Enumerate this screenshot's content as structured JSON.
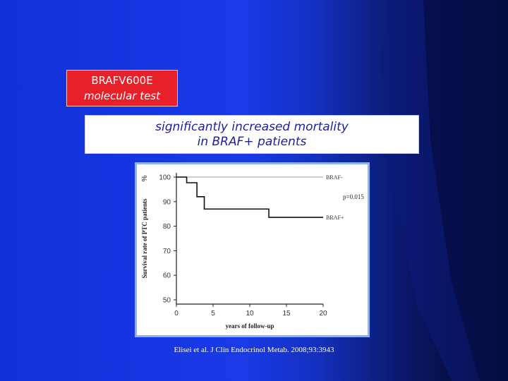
{
  "slide": {
    "tag_line1": "BRAFV600E",
    "tag_line2": "molecular test",
    "headline_line1": "significantly increased mortality",
    "headline_line2": "in BRAF+ patients",
    "citation": "Elisei et al. J Clin Endocrinol Metab. 2008;93:3943"
  },
  "chart_data": {
    "type": "line",
    "title": "",
    "xlabel": "years of follow-up",
    "ylabel": "Survival rate of PTC patients",
    "y_unit": "%",
    "xlim": [
      0,
      20
    ],
    "ylim": [
      50,
      100
    ],
    "x_ticks": [
      "0",
      "5",
      "10",
      "15",
      "20"
    ],
    "y_ticks": [
      "100",
      "90",
      "80",
      "70",
      "60",
      "50"
    ],
    "grid": false,
    "annotation": "p=0.015",
    "series": [
      {
        "name": "BRAF-",
        "step": true,
        "color": "#b0b0b0",
        "x": [
          0,
          20
        ],
        "y": [
          100,
          100
        ]
      },
      {
        "name": "BRAF+",
        "step": true,
        "color": "#111111",
        "x": [
          0,
          1.4,
          2.8,
          3.8,
          12.6,
          20
        ],
        "y": [
          100,
          97.7,
          92,
          87,
          83.6,
          83.6
        ]
      }
    ]
  }
}
